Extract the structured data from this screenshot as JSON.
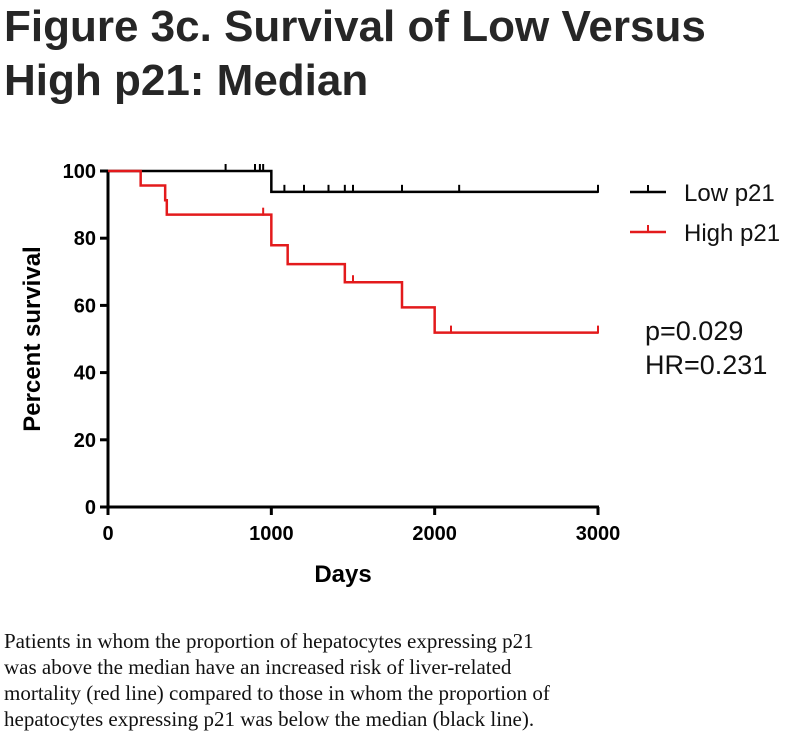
{
  "figure": {
    "title_lines": [
      "Figure 3c.  Survival of Low Versus",
      "High p21: Median"
    ],
    "caption_lines": [
      "Patients in whom the proportion of hepatocytes expressing p21",
      "was above the median have an increased risk of liver-related",
      "mortality (red line) compared to those in whom the proportion of",
      "hepatocytes expressing p21 was below the median (black line)."
    ],
    "stats": {
      "p_value": "p=0.029",
      "hazard_ratio": "HR=0.231"
    }
  },
  "chart_data": {
    "type": "line",
    "xlabel": "Days",
    "ylabel": "Percent survival",
    "xlim": [
      0,
      3000
    ],
    "ylim": [
      0,
      100
    ],
    "x_ticks": [
      0,
      1000,
      2000,
      3000
    ],
    "y_ticks": [
      0,
      20,
      40,
      60,
      80,
      100
    ],
    "grid": false,
    "legend_position": "top-right",
    "series": [
      {
        "name": "Low p21",
        "color": "#000000",
        "steps": [
          [
            0,
            100
          ],
          [
            1000,
            93.8
          ],
          [
            3000,
            93.8
          ]
        ],
        "censored": [
          [
            720,
            100
          ],
          [
            900,
            100
          ],
          [
            930,
            100
          ],
          [
            950,
            100
          ],
          [
            1080,
            93.8
          ],
          [
            1200,
            93.8
          ],
          [
            1350,
            93.8
          ],
          [
            1450,
            93.8
          ],
          [
            1500,
            93.8
          ],
          [
            1800,
            93.8
          ],
          [
            2150,
            93.8
          ],
          [
            3000,
            93.8
          ]
        ]
      },
      {
        "name": "High p21",
        "color": "#e31a1c",
        "steps": [
          [
            0,
            100
          ],
          [
            200,
            95.7
          ],
          [
            350,
            91.3
          ],
          [
            360,
            87
          ],
          [
            1000,
            77.9
          ],
          [
            1100,
            72.3
          ],
          [
            1450,
            66.9
          ],
          [
            1800,
            59.4
          ],
          [
            2000,
            51.9
          ],
          [
            3000,
            51.9
          ]
        ],
        "censored": [
          [
            950,
            87
          ],
          [
            1500,
            66.9
          ],
          [
            2100,
            51.9
          ],
          [
            3000,
            51.9
          ]
        ]
      }
    ]
  }
}
